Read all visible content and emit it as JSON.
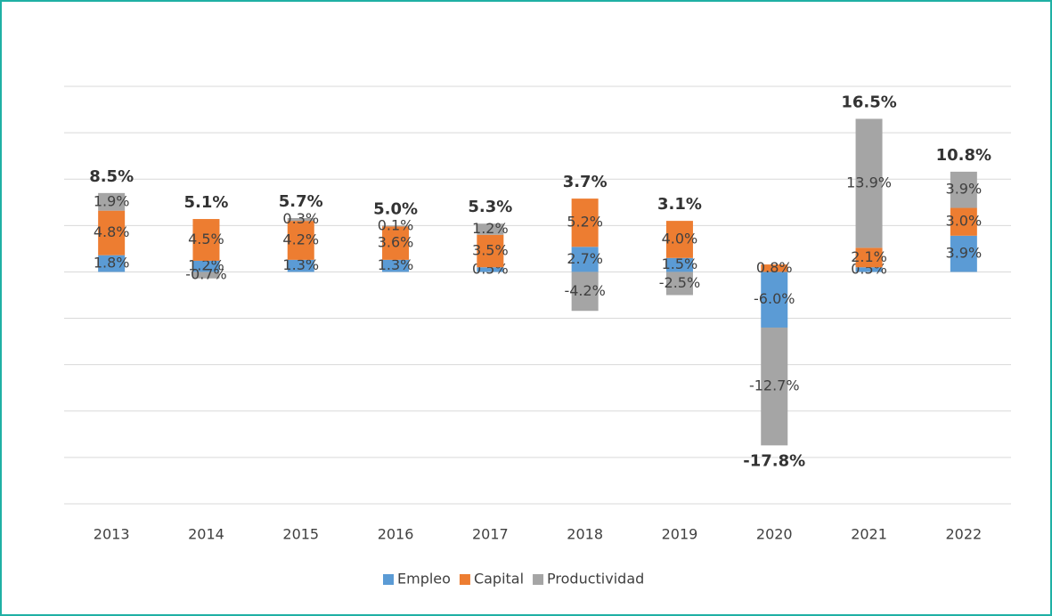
{
  "chart_data": {
    "type": "stacked_bar",
    "categories": [
      "2013",
      "2014",
      "2015",
      "2016",
      "2017",
      "2018",
      "2019",
      "2020",
      "2021",
      "2022"
    ],
    "series": [
      {
        "name": "Empleo",
        "color": "#5b9bd5",
        "values": [
          1.8,
          1.2,
          1.3,
          1.3,
          0.5,
          2.7,
          1.5,
          -6.0,
          0.5,
          3.9
        ],
        "value_labels": [
          "1.8%",
          "1.2%",
          "1.3%",
          "1.3%",
          "0.5%",
          "2.7%",
          "1.5%",
          "-6.0%",
          "0.5%",
          "3.9%"
        ]
      },
      {
        "name": "Capital",
        "color": "#ed7d31",
        "values": [
          4.8,
          4.5,
          4.2,
          3.6,
          3.5,
          5.2,
          4.0,
          0.8,
          2.1,
          3.0
        ],
        "value_labels": [
          "4.8%",
          "4.5%",
          "4.2%",
          "3.6%",
          "3.5%",
          "5.2%",
          "4.0%",
          "0.8%",
          "2.1%",
          "3.0%"
        ]
      },
      {
        "name": "Productividad",
        "color": "#a5a5a5",
        "values": [
          1.9,
          -0.7,
          0.3,
          0.1,
          1.2,
          -4.2,
          -2.5,
          -12.7,
          13.9,
          3.9
        ],
        "value_labels": [
          "1.9%",
          "-0.7%",
          "0.3%",
          "0.1%",
          "1.2%",
          "-4.2%",
          "-2.5%",
          "-12.7%",
          "13.9%",
          "3.9%"
        ]
      }
    ],
    "totals": [
      8.5,
      5.1,
      5.7,
      5.0,
      5.3,
      3.7,
      3.1,
      -17.8,
      16.5,
      10.8
    ],
    "total_labels": [
      "8.5%",
      "5.1%",
      "5.7%",
      "5.0%",
      "5.3%",
      "3.7%",
      "3.1%",
      "-17.8%",
      "16.5%",
      "10.8%"
    ],
    "ylim": [
      -25,
      20
    ],
    "yticks": [
      -25,
      -20,
      -15,
      -10,
      -5,
      0,
      5,
      10,
      15,
      20
    ],
    "grid": true,
    "legend": "bottom"
  }
}
